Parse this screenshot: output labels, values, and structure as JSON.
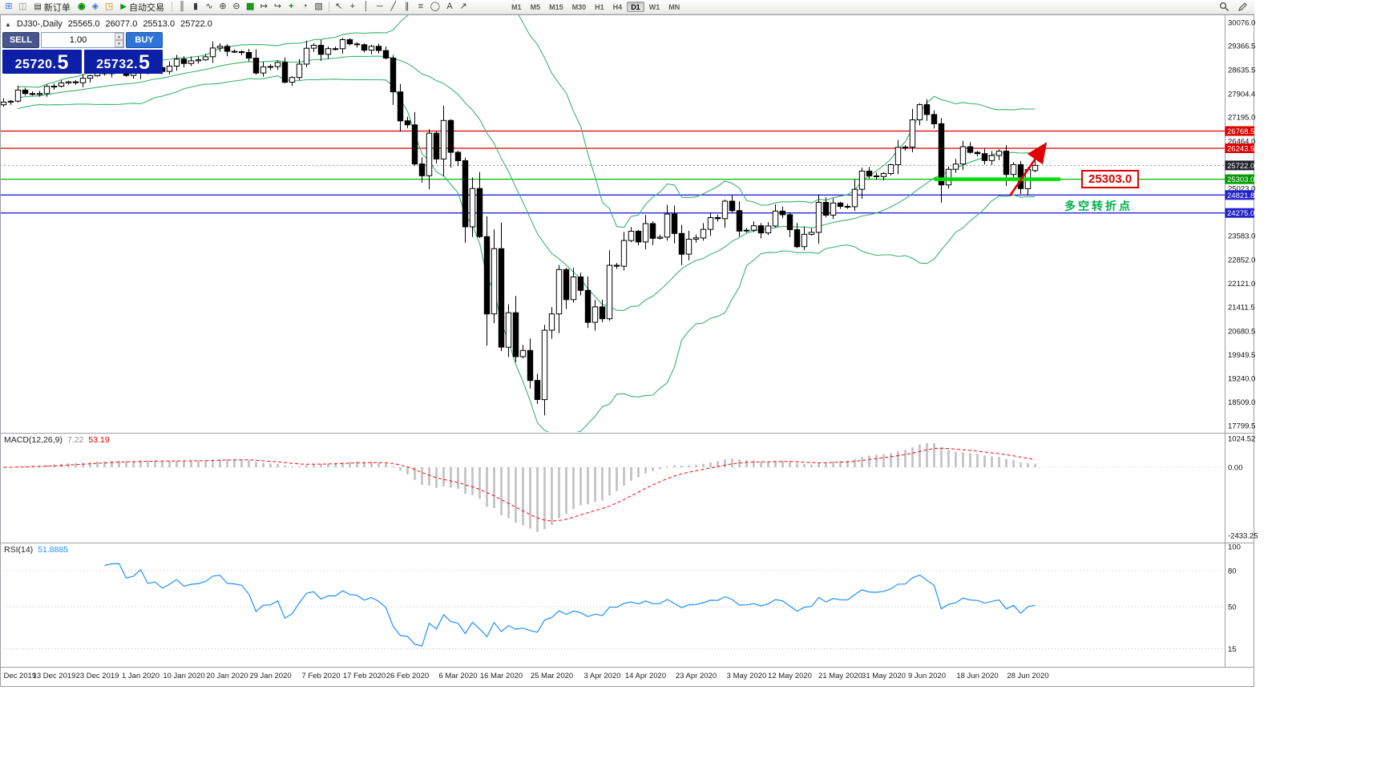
{
  "toolbar": {
    "left_buttons": [
      {
        "name": "new-chart-icon",
        "glyph": "⊞",
        "class": "blue"
      },
      {
        "name": "profiles-icon",
        "glyph": "◫",
        "class": "gray"
      }
    ],
    "new_order_label": "新订单",
    "new_order_icon": "▤",
    "mid_buttons": [
      {
        "name": "market-watch-icon",
        "glyph": "◉",
        "class": "green"
      },
      {
        "name": "data-window-icon",
        "glyph": "◈",
        "class": "blue"
      },
      {
        "name": "terminal-icon",
        "glyph": "◳",
        "class": "olive"
      }
    ],
    "autotrade_label": "自动交易",
    "autotrade_icon": "▶",
    "chart_tools": [
      {
        "name": "bar-chart-icon",
        "glyph": "║"
      },
      {
        "name": "candlestick-chart-icon",
        "glyph": "▮"
      },
      {
        "name": "line-chart-icon",
        "glyph": "∿"
      },
      {
        "name": "zoom-in-icon",
        "glyph": "⊕"
      },
      {
        "name": "zoom-out-icon",
        "glyph": "⊖"
      },
      {
        "name": "tile-windows-icon",
        "glyph": "▦",
        "class": "green"
      },
      {
        "name": "auto-scroll-icon",
        "glyph": "↦"
      },
      {
        "name": "chart-shift-icon",
        "glyph": "↪"
      },
      {
        "name": "indicators-icon",
        "glyph": "+",
        "class": "green"
      },
      {
        "name": "periods-icon",
        "glyph": "◔"
      },
      {
        "name": "templates-icon",
        "glyph": "▧"
      }
    ],
    "draw_tools": [
      {
        "name": "cursor-icon",
        "glyph": "↖"
      },
      {
        "name": "crosshair-icon",
        "glyph": "+"
      },
      {
        "name": "vertical-line-icon",
        "glyph": "│"
      },
      {
        "name": "horizontal-line-icon",
        "glyph": "─"
      },
      {
        "name": "trendline-icon",
        "glyph": "╱"
      },
      {
        "name": "channel-icon",
        "glyph": "∥"
      },
      {
        "name": "fibonacci-icon",
        "glyph": "≡"
      },
      {
        "name": "shapes-icon",
        "glyph": "◯"
      },
      {
        "name": "text-icon",
        "glyph": "A"
      },
      {
        "name": "arrows-icon",
        "glyph": "↗"
      }
    ],
    "timeframes": [
      "M1",
      "M5",
      "M15",
      "M30",
      "H1",
      "H4",
      "D1",
      "W1",
      "MN"
    ],
    "active_timeframe": "D1"
  },
  "chart_header": {
    "toggle_icon": "▲",
    "symbol_period": "DJ30-,Daily",
    "open": "25565.0",
    "high": "26077.0",
    "low": "25513.0",
    "close": "25722.0"
  },
  "trade_panel": {
    "sell_label": "SELL",
    "buy_label": "BUY",
    "lot_value": "1.00",
    "lot_up_icon": "▴",
    "lot_down_icon": "▾",
    "sell_price_main": "25720.",
    "sell_price_big": "5",
    "buy_price_main": "25732.",
    "buy_price_big": "5"
  },
  "indicator_labels": {
    "macd_name": "MACD(12,26,9)",
    "macd_value": "7.22",
    "macd_signal": "53.19",
    "rsi_name": "RSI(14)",
    "rsi_value": "51.8885"
  },
  "chart_data": {
    "type": "candlestick",
    "symbol": "DJ30-",
    "timeframe": "Daily",
    "ohlc_display": {
      "open": "25565.0",
      "high": "26077.0",
      "low": "25513.0",
      "close": "25722.0"
    },
    "closes": [
      27650,
      27678,
      28015,
      27910,
      27882,
      27911,
      28132,
      28135,
      28236,
      28267,
      28239,
      28377,
      28455,
      28551,
      28515,
      28621,
      28645,
      28462,
      28538,
      28869,
      28635,
      28703,
      28584,
      28745,
      28957,
      28824,
      28907,
      28939,
      29030,
      29297,
      29348,
      29196,
      29186,
      29160,
      28990,
      28536,
      28723,
      28734,
      28859,
      28256,
      28400,
      28808,
      29291,
      29380,
      29103,
      29277,
      29276,
      29551,
      29423,
      29398,
      29232,
      29348,
      29220,
      28992,
      27961,
      27081,
      26958,
      25767,
      25409,
      26703,
      25917,
      27090,
      26121,
      25865,
      23851,
      25018,
      23553,
      21200,
      23185,
      20188,
      21237,
      19899,
      20087,
      19174,
      18592,
      20705,
      21200,
      22552,
      21637,
      22327,
      21917,
      20944,
      21413,
      21053,
      22680,
      22654,
      23434,
      23719,
      23391,
      23950,
      23504,
      23538,
      24242,
      23650,
      23019,
      23476,
      23515,
      23775,
      24134,
      24102,
      24634,
      24346,
      23724,
      23749,
      23883,
      23665,
      23876,
      24331,
      24222,
      23765,
      23248,
      23625,
      23685,
      24597,
      24207,
      24576,
      24474,
      24465,
      24995,
      25548,
      25401,
      25383,
      25475,
      25743,
      26270,
      26282,
      27111,
      27572,
      27272,
      26990,
      25128,
      25605,
      25763,
      26290,
      26120,
      26080,
      25871,
      26025,
      26156,
      25446,
      25746,
      25016,
      25596,
      25722
    ],
    "last_candle": {
      "open": 25565.0,
      "high": 26077.0,
      "low": 25513.0,
      "close": 25722.0
    },
    "y_axis": {
      "top_price": 30076.0,
      "bottom_price": 17799.5,
      "labels": [
        "30076.0",
        "29366.5",
        "28635.5",
        "27904.4",
        "27195.0",
        "26464.0",
        "25023.0",
        "23583.0",
        "22852.0",
        "22121.0",
        "21411.5",
        "20680.5",
        "19949.5",
        "19240.0",
        "18509.0",
        "17799.5"
      ]
    },
    "x_axis": {
      "labels": [
        {
          "text": "Dec 2019",
          "i": 0
        },
        {
          "text": "13 Dec 2019",
          "i": 7
        },
        {
          "text": "23 Dec 2019",
          "i": 13
        },
        {
          "text": "1 Jan 2020",
          "i": 19
        },
        {
          "text": "10 Jan 2020",
          "i": 25
        },
        {
          "text": "20 Jan 2020",
          "i": 31
        },
        {
          "text": "29 Jan 2020",
          "i": 37
        },
        {
          "text": "7 Feb 2020",
          "i": 44
        },
        {
          "text": "17 Feb 2020",
          "i": 50
        },
        {
          "text": "26 Feb 2020",
          "i": 56
        },
        {
          "text": "6 Mar 2020",
          "i": 63
        },
        {
          "text": "16 Mar 2020",
          "i": 69
        },
        {
          "text": "25 Mar 2020",
          "i": 76
        },
        {
          "text": "3 Apr 2020",
          "i": 83
        },
        {
          "text": "14 Apr 2020",
          "i": 89
        },
        {
          "text": "23 Apr 2020",
          "i": 96
        },
        {
          "text": "3 May 2020",
          "i": 103
        },
        {
          "text": "12 May 2020",
          "i": 109
        },
        {
          "text": "21 May 2020",
          "i": 116
        },
        {
          "text": "31 May 2020",
          "i": 122
        },
        {
          "text": "9 Jun 2020",
          "i": 128
        },
        {
          "text": "18 Jun 2020",
          "i": 135
        },
        {
          "text": "28 Jun 2020",
          "i": 142
        }
      ]
    },
    "levels": [
      {
        "price": 26768.5,
        "label": "26768.5",
        "color": "#dd0000",
        "tag_color": "#dd0000",
        "type": "resistance"
      },
      {
        "price": 26243.5,
        "label": "26243.5",
        "color": "#dd0000",
        "tag_color": "#dd0000",
        "type": "resistance"
      },
      {
        "price": 25303.0,
        "label": "25303.0",
        "color": "#00bb00",
        "tag_color": "#009900",
        "type": "support"
      },
      {
        "price": 24821.8,
        "label": "24821.8",
        "color": "#2222dd",
        "tag_color": "#2222cc",
        "type": "support"
      },
      {
        "price": 24275.0,
        "label": "24275.0",
        "color": "#2222dd",
        "tag_color": "#2222cc",
        "type": "support"
      }
    ],
    "current_price": {
      "value": 25722.0,
      "label": "25722.0",
      "tag_color": "#20202e"
    },
    "bollinger": {
      "period": 20,
      "deviation": 2,
      "color": "#3CB371"
    },
    "macd": {
      "fast": 12,
      "slow": 26,
      "signal": 9,
      "axis_labels": [
        "1024.52",
        "0.00",
        "-2433.25"
      ],
      "histogram_color": "#c0c0c0",
      "signal_color": "#ff0000"
    },
    "rsi": {
      "period": 14,
      "axis_labels": [
        "100",
        "80",
        "50",
        "15"
      ],
      "levels": [
        80,
        50,
        15
      ],
      "color": "#1e90ff"
    },
    "annotations": {
      "support_segment": {
        "price": 25303.0,
        "from_index": 129,
        "to_index": 146.5,
        "color": "#00e000"
      },
      "trend_arrow": {
        "from_index": 139.5,
        "from_price": 24800,
        "to_index": 144.3,
        "to_price": 26330,
        "color": "#e00000"
      },
      "price_box_label": "25303.0",
      "turning_point_label": "多空转折点"
    }
  }
}
